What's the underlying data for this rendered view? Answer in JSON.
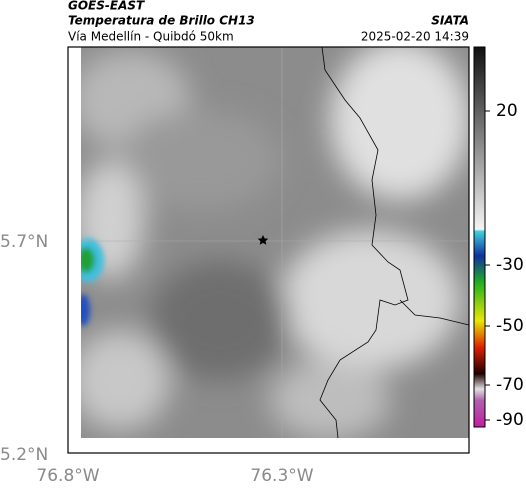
{
  "header": {
    "title": "GOES-EAST",
    "subtitle": "Temperatura de Brillo CH13",
    "source": "SIATA",
    "location": "Vía Medellín - Quibdó 50km",
    "datetime": "2025-02-20 14:39"
  },
  "map": {
    "lat_ticks": [
      "5.7°N",
      "5.2°N"
    ],
    "lon_ticks": [
      "76.8°W",
      "76.3°W"
    ]
  },
  "colorbar": {
    "ticks": [
      20,
      -30,
      -50,
      -70,
      -90
    ]
  }
}
